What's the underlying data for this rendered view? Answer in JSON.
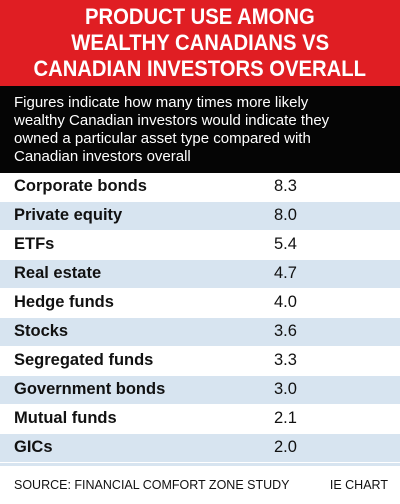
{
  "header": {
    "title_lines": [
      "PRODUCT USE AMONG",
      "WEALTHY CANADIANS VS",
      "CANADIAN INVESTORS OVERALL"
    ],
    "background": "#e01e23"
  },
  "subtitle": {
    "lines": [
      "Figures indicate how many times more likely",
      "wealthy Canadian investors would indicate they",
      "owned a particular asset type compared with",
      "Canadian investors overall"
    ],
    "background": "#050505"
  },
  "colors": {
    "row_shade": "#d7e4f0",
    "text": "#111111"
  },
  "chart_data": {
    "type": "table",
    "title": "PRODUCT USE AMONG WEALTHY CANADIANS VS CANADIAN INVESTORS OVERALL",
    "categories": [
      "Corporate bonds",
      "Private equity",
      "ETFs",
      "Real estate",
      "Hedge funds",
      "Stocks",
      "Segregated funds",
      "Government bonds",
      "Mutual funds",
      "GICs"
    ],
    "values": [
      8.3,
      8.0,
      5.4,
      4.7,
      4.0,
      3.6,
      3.3,
      3.0,
      2.1,
      2.0
    ],
    "value_labels": [
      "8.3",
      "8.0",
      "5.4",
      "4.7",
      "4.0",
      "3.6",
      "3.3",
      "3.0",
      "2.1",
      "2.0"
    ]
  },
  "footer": {
    "source": "SOURCE: FINANCIAL COMFORT ZONE STUDY",
    "credit": "IE CHART"
  }
}
